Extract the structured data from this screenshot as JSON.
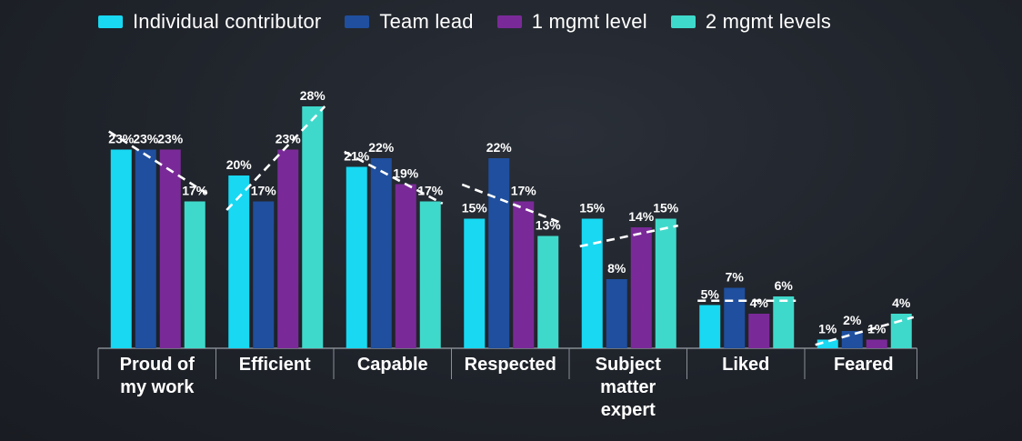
{
  "chart_data": {
    "type": "bar",
    "title": "",
    "xlabel": "",
    "ylabel": "",
    "ylim": [
      0,
      30
    ],
    "grid": false,
    "legend_position": "top-left",
    "categories": [
      [
        "Proud of",
        "my work"
      ],
      [
        "Efficient"
      ],
      [
        "Capable"
      ],
      [
        "Respected"
      ],
      [
        "Subject",
        "matter",
        "expert"
      ],
      [
        "Liked"
      ],
      [
        "Feared"
      ]
    ],
    "series": [
      {
        "name": "Individual contributor",
        "color": "#18d8f2",
        "values": [
          23,
          20,
          21,
          15,
          15,
          5,
          1
        ],
        "labels": [
          "23%",
          "20%",
          "21%",
          "15%",
          "15%",
          "5%",
          "1%"
        ]
      },
      {
        "name": "Team lead",
        "color": "#1f4f9e",
        "values": [
          23,
          17,
          22,
          22,
          8,
          7,
          2
        ],
        "labels": [
          "23%",
          "17%",
          "22%",
          "22%",
          "8%",
          "7%",
          "2%"
        ]
      },
      {
        "name": "1 mgmt level",
        "color": "#7a2a98",
        "values": [
          23,
          23,
          19,
          17,
          14,
          4,
          1
        ],
        "labels": [
          "23%",
          "23%",
          "19%",
          "17%",
          "14%",
          "4%",
          "1%"
        ]
      },
      {
        "name": "2 mgmt levels",
        "color": "#3fd9cb",
        "values": [
          17,
          28,
          17,
          13,
          15,
          6,
          4
        ],
        "labels": [
          "17%",
          "28%",
          "17%",
          "13%",
          "15%",
          "6%",
          "4%"
        ]
      }
    ],
    "trendlines": "dashed-white-per-category"
  }
}
